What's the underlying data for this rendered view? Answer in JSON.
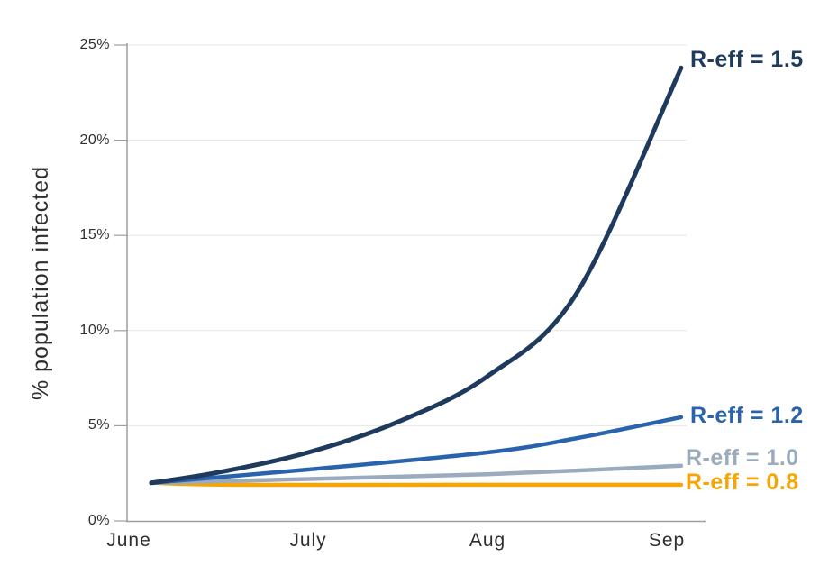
{
  "chart_data": {
    "type": "line",
    "title": "",
    "ylabel": "% population infected",
    "xlabel": "",
    "x_axis": {
      "tick_labels": [
        "June",
        "July",
        "Aug",
        "Sep"
      ],
      "tick_positions_months": [
        0,
        1,
        2,
        3
      ]
    },
    "y_axis": {
      "tick_labels": [
        "0%",
        "5%",
        "10%",
        "15%",
        "20%",
        "25%"
      ],
      "tick_values": [
        0,
        5,
        10,
        15,
        20,
        25
      ]
    },
    "ylim": [
      0,
      25
    ],
    "xlim_months": [
      0,
      3.22
    ],
    "grid": "horizontal-only",
    "legend_position": "labels-at-line-ends-right",
    "series": [
      {
        "name": "R-eff = 1.5",
        "color": "#1e3a5c",
        "stroke_width": 5,
        "x_months": [
          0.125,
          0.5,
          1.0,
          1.5,
          2.0,
          2.5,
          3.08
        ],
        "values": [
          2.0,
          2.55,
          3.6,
          5.2,
          7.6,
          12.0,
          23.8
        ],
        "label_x": 766,
        "label_dy": -9
      },
      {
        "name": "R-eff = 1.2",
        "color": "#2a63ad",
        "stroke_width": 4.5,
        "x_months": [
          0.125,
          1.0,
          2.0,
          2.5,
          3.08
        ],
        "values": [
          2.0,
          2.7,
          3.6,
          4.35,
          5.45
        ],
        "label_x": 766,
        "label_dy": -2
      },
      {
        "name": "R-eff = 1.0",
        "color": "#9aabbd",
        "stroke_width": 4.5,
        "x_months": [
          0.125,
          1.0,
          2.0,
          3.08
        ],
        "values": [
          2.0,
          2.2,
          2.45,
          2.9
        ],
        "label_x": 761,
        "label_dy": -9
      },
      {
        "name": "R-eff = 0.8",
        "color": "#f5a506",
        "stroke_width": 4.5,
        "x_months": [
          0.125,
          0.6,
          2.0,
          3.08
        ],
        "values": [
          2.0,
          1.9,
          1.9,
          1.9
        ],
        "label_x": 761,
        "label_dy": -3
      }
    ],
    "style": {
      "grid_color": "#e6e6e6",
      "axis_color": "#9e9e9e",
      "tick_text_color": "#2f2f2f",
      "background": "#ffffff"
    }
  }
}
